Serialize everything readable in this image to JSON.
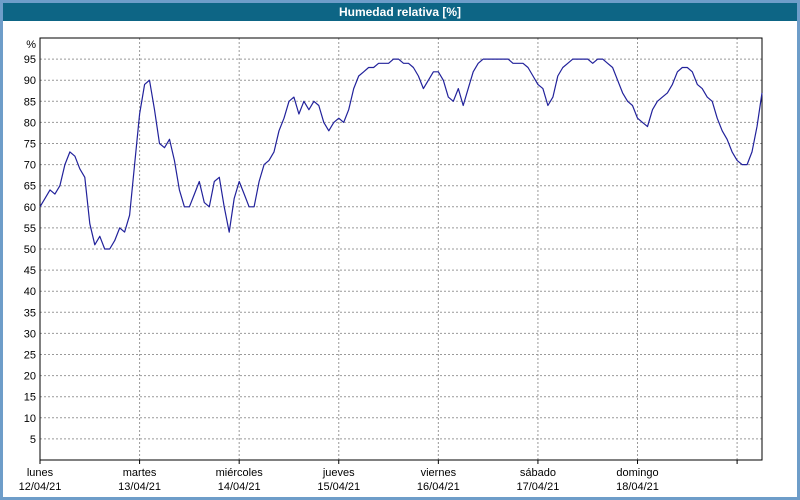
{
  "window": {
    "title": "Humedad relativa [%]"
  },
  "colors": {
    "frame_border": "#6e9dc9",
    "titlebar_bg": "#0d6585",
    "titlebar_text": "#ffffff",
    "plot_bg": "#ffffff",
    "plot_frame": "#000000",
    "grid": "#999999",
    "line": "#22229b",
    "tick_text": "#000000"
  },
  "chart_data": {
    "type": "line",
    "title": "Humedad relativa [%]",
    "ylabel": "%",
    "xlabel": "",
    "ylim": [
      0,
      100
    ],
    "grid": "dashed",
    "legend_position": "none",
    "y_ticks": [
      95,
      90,
      85,
      80,
      75,
      70,
      65,
      60,
      55,
      50,
      45,
      40,
      35,
      30,
      25,
      20,
      15,
      10,
      5
    ],
    "x_days": [
      {
        "name": "lunes",
        "date": "12/04/21"
      },
      {
        "name": "martes",
        "date": "13/04/21"
      },
      {
        "name": "miércoles",
        "date": "14/04/21"
      },
      {
        "name": "jueves",
        "date": "15/04/21"
      },
      {
        "name": "viernes",
        "date": "16/04/21"
      },
      {
        "name": "sábado",
        "date": "17/04/21"
      },
      {
        "name": "domingo",
        "date": "18/04/21"
      }
    ],
    "x_step_days": 0.05,
    "series": [
      {
        "name": "Humedad relativa",
        "color": "#22229b",
        "values": [
          60,
          62,
          64,
          63,
          65,
          70,
          73,
          72,
          69,
          67,
          56,
          51,
          53,
          50,
          50,
          52,
          55,
          54,
          58,
          70,
          82,
          89,
          90,
          83,
          75,
          74,
          76,
          71,
          64,
          60,
          60,
          63,
          66,
          61,
          60,
          66,
          67,
          60,
          54,
          62,
          66,
          63,
          60,
          60,
          66,
          70,
          71,
          73,
          78,
          81,
          85,
          86,
          82,
          85,
          83,
          85,
          84,
          80,
          78,
          80,
          81,
          80,
          83,
          88,
          91,
          92,
          93,
          93,
          94,
          94,
          94,
          95,
          95,
          94,
          94,
          93,
          91,
          88,
          90,
          92,
          92,
          90,
          86,
          85,
          88,
          84,
          88,
          92,
          94,
          95,
          95,
          95,
          95,
          95,
          95,
          94,
          94,
          94,
          93,
          91,
          89,
          88,
          84,
          86,
          91,
          93,
          94,
          95,
          95,
          95,
          95,
          94,
          95,
          95,
          94,
          93,
          90,
          87,
          85,
          84,
          81,
          80,
          79,
          83,
          85,
          86,
          87,
          89,
          92,
          93,
          93,
          92,
          89,
          88,
          86,
          85,
          81,
          78,
          76,
          73,
          71,
          70,
          70,
          73,
          79,
          87
        ]
      }
    ]
  }
}
